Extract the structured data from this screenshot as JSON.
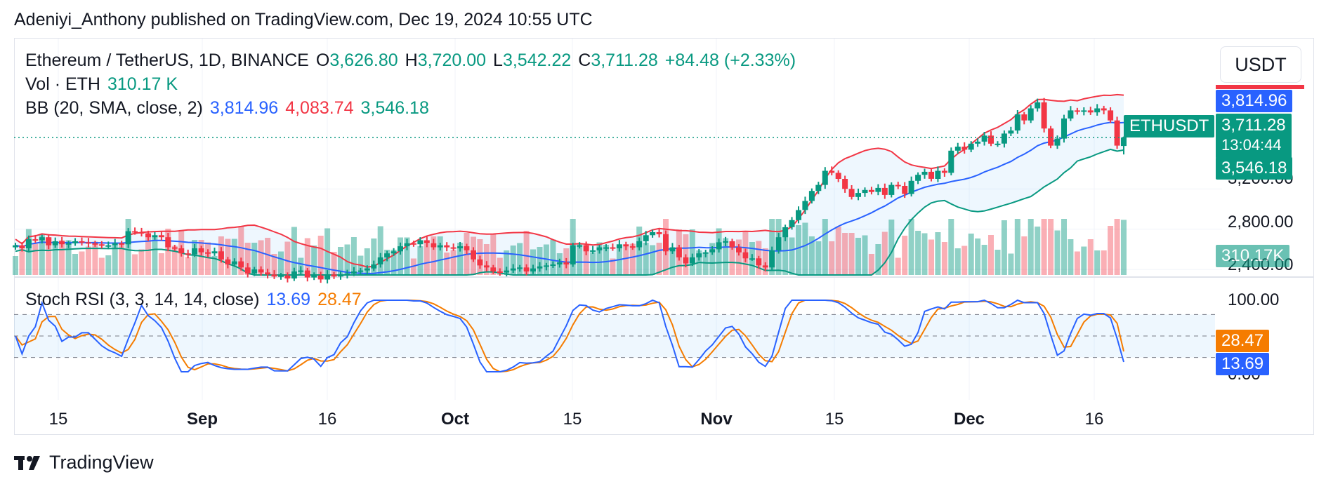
{
  "publisher_line": "Adeniyi_Anthony published on TradingView.com, Dec 19, 2024 10:55 UTC",
  "brand": "TradingView",
  "currency_button": "USDT",
  "legend": {
    "symbol": "Ethereum / TetherUS, 1D, BINANCE",
    "o_label": "O",
    "o_value": "3,626.80",
    "h_label": "H",
    "h_value": "3,720.00",
    "l_label": "L",
    "l_value": "3,542.22",
    "c_label": "C",
    "c_value": "3,711.28",
    "change": "+84.48 (+2.33%)",
    "vol_label": "Vol · ETH",
    "vol_value": "310.17 K",
    "bb_label": "BB (20, SMA, close, 2)",
    "bb_basis": "3,814.96",
    "bb_upper": "4,083.74",
    "bb_lower": "3,546.18",
    "stoch_label": "Stoch RSI (3, 3, 14, 14, close)",
    "stoch_k": "13.69",
    "stoch_d": "28.47"
  },
  "price_tags": {
    "basis": "3,814.96",
    "price": "3,711.28",
    "countdown": "13:04:44",
    "lower": "3,546.18",
    "symbol_tag": "ETHUSDT",
    "volume": "310.17K",
    "stoch_d": "28.47",
    "stoch_k": "13.69"
  },
  "colors": {
    "up": "#089981",
    "down": "#f23645",
    "bb_basis": "#2962ff",
    "bb_upper": "#f23645",
    "bb_lower": "#089981",
    "stoch_k": "#2962ff",
    "stoch_d": "#f57c00"
  },
  "chart_data": {
    "type": "candlestick",
    "symbol": "ETHUSDT",
    "interval": "1D",
    "price_axis_ticks": [
      2400,
      2800,
      3200
    ],
    "price_axis_tick_labels": [
      "2,400.00",
      "2,800.00",
      "3,200.00"
    ],
    "x_axis_labels": [
      "15",
      "Sep",
      "16",
      "Oct",
      "15",
      "Nov",
      "15",
      "Dec",
      "16"
    ],
    "last_candle": {
      "open": 3626.8,
      "high": 3720.0,
      "low": 3542.22,
      "close": 3711.28
    },
    "closes": [
      2640,
      2610,
      2700,
      2690,
      2720,
      2640,
      2680,
      2650,
      2660,
      2680,
      2670,
      2660,
      2650,
      2640,
      2640,
      2660,
      2650,
      2780,
      2770,
      2760,
      2720,
      2740,
      2720,
      2620,
      2610,
      2560,
      2550,
      2610,
      2570,
      2560,
      2580,
      2500,
      2450,
      2480,
      2420,
      2360,
      2400,
      2370,
      2350,
      2330,
      2340,
      2310,
      2380,
      2390,
      2320,
      2340,
      2300,
      2350,
      2330,
      2350,
      2360,
      2380,
      2390,
      2410,
      2450,
      2520,
      2560,
      2580,
      2630,
      2660,
      2650,
      2690,
      2660,
      2620,
      2640,
      2620,
      2610,
      2630,
      2590,
      2500,
      2440,
      2420,
      2380,
      2370,
      2390,
      2410,
      2420,
      2380,
      2410,
      2430,
      2440,
      2450,
      2470,
      2450,
      2640,
      2640,
      2580,
      2590,
      2620,
      2620,
      2610,
      2650,
      2630,
      2620,
      2680,
      2740,
      2770,
      2750,
      2580,
      2620,
      2520,
      2460,
      2520,
      2560,
      2570,
      2600,
      2670,
      2680,
      2620,
      2570,
      2510,
      2510,
      2440,
      2420,
      2590,
      2720,
      2820,
      2890,
      2990,
      3080,
      3180,
      3240,
      3380,
      3360,
      3300,
      3200,
      3120,
      3160,
      3190,
      3170,
      3210,
      3140,
      3240,
      3230,
      3150,
      3280,
      3340,
      3370,
      3300,
      3380,
      3360,
      3580,
      3620,
      3590,
      3650,
      3670,
      3730,
      3650,
      3650,
      3750,
      3780,
      3940,
      3880,
      4000,
      4060,
      3800,
      3630,
      3700,
      3900,
      3980,
      3970,
      3980,
      3960,
      4000,
      3980,
      3880,
      3630,
      3711.28
    ],
    "stoch_k_last": 13.69,
    "stoch_d_last": 28.47,
    "stoch_axis_labels": [
      "100.00",
      "0.00"
    ],
    "stoch_bands": [
      80,
      50,
      20
    ]
  }
}
